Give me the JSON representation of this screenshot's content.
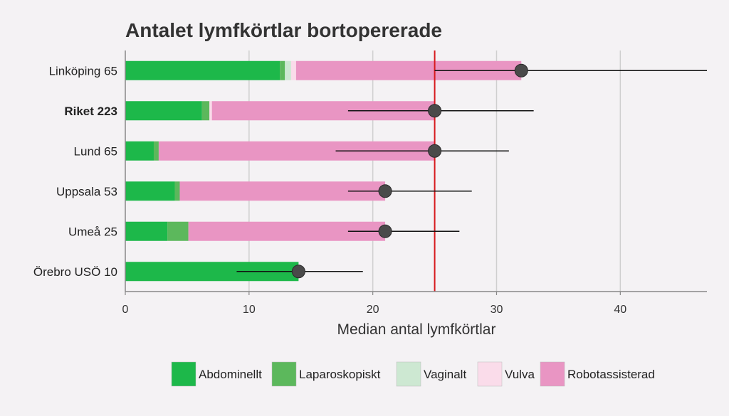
{
  "chart_data": {
    "type": "bar",
    "title": "Antalet lymfkörtlar bortopererade",
    "xlabel": "Median antal lymfkörtlar",
    "ylabel": "",
    "xlim": [
      0,
      47
    ],
    "xticks": [
      0,
      10,
      20,
      30,
      40
    ],
    "grid": true,
    "orientation": "horizontal",
    "stacked": true,
    "reference_line": {
      "value": 25,
      "color": "#d7191c"
    },
    "categories": [
      "Linköping 65",
      "Riket 223",
      "Lund 65",
      "Uppsala 53",
      "Umeå 25",
      "Örebro USÖ 10"
    ],
    "bold_categories": [
      "Riket 223"
    ],
    "series": [
      {
        "name": "Abdominellt",
        "color": "#1db84a",
        "values": [
          12.5,
          6.2,
          2.3,
          4.0,
          3.4,
          14.0
        ]
      },
      {
        "name": "Laparoskopiskt",
        "color": "#5cb85c",
        "values": [
          0.4,
          0.6,
          0.4,
          0.4,
          1.7,
          0.0
        ]
      },
      {
        "name": "Vaginalt",
        "color": "#cde8d2",
        "values": [
          0.5,
          0.0,
          0.0,
          0.0,
          0.0,
          0.0
        ]
      },
      {
        "name": "Vulva",
        "color": "#fadcea",
        "values": [
          0.4,
          0.2,
          0.0,
          0.0,
          0.0,
          0.0
        ]
      },
      {
        "name": "Robotassisterad",
        "color": "#e995c3",
        "values": [
          18.2,
          18.0,
          22.3,
          16.6,
          15.9,
          0.0
        ]
      }
    ],
    "median": [
      32,
      25,
      25,
      21,
      21,
      14
    ],
    "interval_low": [
      25,
      18,
      17,
      18,
      18,
      9
    ],
    "interval_high": [
      47,
      33,
      31,
      28,
      27,
      19.2
    ],
    "legend_position": "bottom"
  }
}
